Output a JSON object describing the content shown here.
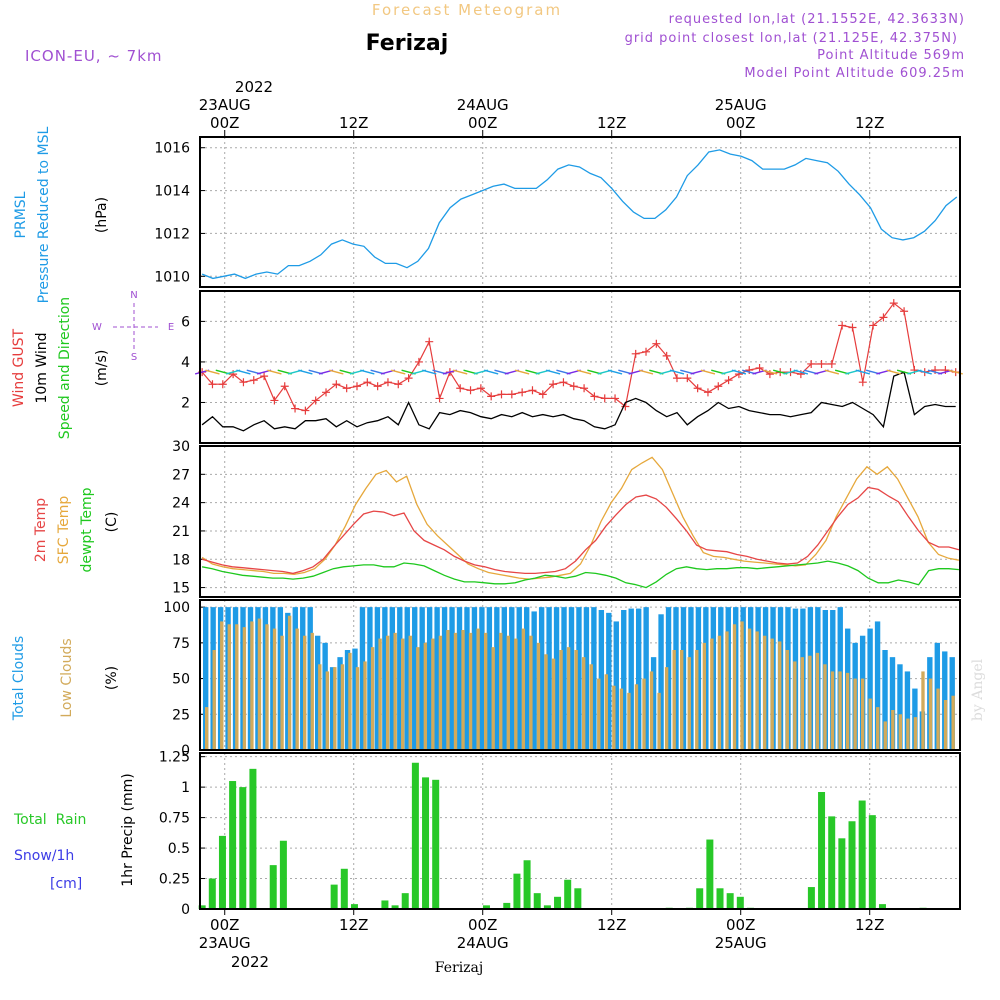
{
  "header": {
    "meteogram_title": "Forecast Meteogram",
    "location": "Ferizaj",
    "model": "ICON-EU, ~ 7km",
    "requested": "requested lon,lat (21.1552E, 42.3633N)",
    "grid_point": "grid point closest lon,lat (21.125E, 42.375N)",
    "point_altitude": "Point Altitude 569m",
    "model_altitude": "Model Point Altitude 609.25m"
  },
  "footer": {
    "location": "Ferizaj",
    "credit": "by Angel"
  },
  "time_axis": {
    "year": "2022",
    "ticks": [
      {
        "hour": 0,
        "label": "00Z",
        "date": "23AUG"
      },
      {
        "hour": 12,
        "label": "12Z",
        "date": ""
      },
      {
        "hour": 24,
        "label": "00Z",
        "date": "24AUG"
      },
      {
        "hour": 36,
        "label": "12Z",
        "date": ""
      },
      {
        "hour": 48,
        "label": "00Z",
        "date": "25AUG"
      },
      {
        "hour": 60,
        "label": "12Z",
        "date": ""
      }
    ]
  },
  "panels": {
    "pressure": {
      "label1": "PRMSL",
      "label2": "Pressure Reduced to MSL",
      "unit": "(hPa)"
    },
    "wind": {
      "gust": "Wind GUST",
      "wind10": "10m Wind",
      "dir": "Speed and Direction",
      "unit": "(m/s)",
      "compass_ns": "N / S",
      "w": "W",
      "e": "E",
      "n": "N",
      "s": "S"
    },
    "temp": {
      "t2m": "2m Temp",
      "sfc": "SFC Temp",
      "dew": "dewpt Temp",
      "unit": "(C)"
    },
    "clouds": {
      "total": "Total Clouds",
      "low": "Low Clouds",
      "unit": "(%)"
    },
    "precip": {
      "rain": "Total  Rain",
      "snow": "Snow/1h",
      "snow_unit": "[cm]",
      "axis": "1hr Precip (mm)"
    }
  },
  "colors": {
    "pressure": "#1e9be6",
    "gust": "#e63c3c",
    "wind": "#000000",
    "sfc": "#e6a83c",
    "t2m": "#e64646",
    "dew": "#1ec81e",
    "total_clouds": "#1e9be6",
    "low_clouds": "#d2aa5a",
    "precip": "#28c828",
    "purple": "#a050d2",
    "snow": "#3c3ce6"
  },
  "chart_data": [
    {
      "type": "line",
      "name": "PRMSL",
      "ylim": [
        1009.5,
        1016.5
      ],
      "yticks": [
        1010,
        1012,
        1014,
        1016
      ],
      "x": [
        0,
        1,
        2,
        3,
        4,
        5,
        6,
        7,
        8,
        9,
        10,
        11,
        12,
        13,
        14,
        15,
        16,
        17,
        18,
        19,
        20,
        21,
        22,
        23,
        24,
        25,
        26,
        27,
        28,
        29,
        30,
        31,
        32,
        33,
        34,
        35,
        36,
        37,
        38,
        39,
        40,
        41,
        42,
        43,
        44,
        45,
        46,
        47,
        48,
        49,
        50,
        51,
        52,
        53,
        54,
        55,
        56,
        57,
        58,
        59,
        60,
        61,
        62,
        63,
        64,
        65,
        66,
        67,
        68,
        69,
        70
      ],
      "values": [
        1010.1,
        1009.9,
        1010.0,
        1010.1,
        1009.9,
        1010.1,
        1010.2,
        1010.1,
        1010.5,
        1010.5,
        1010.7,
        1011.0,
        1011.5,
        1011.7,
        1011.5,
        1011.4,
        1010.9,
        1010.6,
        1010.6,
        1010.4,
        1010.7,
        1011.3,
        1012.5,
        1013.2,
        1013.6,
        1013.8,
        1014.0,
        1014.2,
        1014.3,
        1014.1,
        1014.1,
        1014.1,
        1014.5,
        1015.0,
        1015.2,
        1015.1,
        1014.8,
        1014.6,
        1014.1,
        1013.5,
        1013.0,
        1012.7,
        1012.7,
        1013.1,
        1013.7,
        1014.7,
        1015.2,
        1015.8,
        1015.9,
        1015.7,
        1015.6,
        1015.4,
        1015.0,
        1015.0,
        1015.0,
        1015.2,
        1015.5,
        1015.4,
        1015.3,
        1014.9,
        1014.3,
        1013.8,
        1013.2,
        1012.2,
        1011.8,
        1011.7,
        1011.8,
        1012.1,
        1012.6,
        1013.3,
        1013.7
      ]
    },
    {
      "type": "line",
      "name": "Wind",
      "ylim": [
        0,
        7.5
      ],
      "yticks": [
        2,
        4,
        6
      ],
      "series": [
        {
          "name": "Wind GUST",
          "values": [
            3.5,
            2.9,
            2.9,
            3.4,
            3.0,
            3.1,
            3.3,
            2.1,
            2.8,
            1.7,
            1.6,
            2.1,
            2.5,
            2.9,
            2.7,
            2.8,
            3.0,
            2.8,
            3.0,
            2.9,
            3.2,
            4.0,
            5.0,
            2.2,
            3.5,
            2.7,
            2.6,
            2.7,
            2.3,
            2.4,
            2.4,
            2.5,
            2.6,
            2.4,
            2.9,
            3.0,
            2.8,
            2.7,
            2.3,
            2.2,
            2.2,
            1.8,
            4.4,
            4.5,
            4.9,
            4.3,
            3.2,
            3.2,
            2.7,
            2.5,
            2.8,
            3.1,
            3.4,
            3.6,
            3.7,
            3.4,
            3.5,
            3.5,
            3.4,
            3.9,
            3.9,
            3.9,
            5.8,
            5.7,
            3.0,
            5.8,
            6.2,
            6.9,
            6.5,
            3.6,
            3.5,
            3.6,
            3.6,
            3.5
          ]
        },
        {
          "name": "10m Wind",
          "values": [
            0.9,
            1.3,
            0.8,
            0.8,
            0.6,
            0.9,
            1.1,
            0.7,
            0.8,
            0.7,
            1.1,
            1.1,
            1.2,
            0.8,
            1.1,
            0.8,
            1.0,
            1.1,
            1.3,
            0.9,
            2.0,
            0.9,
            0.7,
            1.5,
            1.4,
            1.6,
            1.5,
            1.3,
            1.2,
            1.4,
            1.3,
            1.5,
            1.3,
            1.4,
            1.3,
            1.4,
            1.2,
            1.1,
            0.8,
            0.7,
            0.9,
            2.0,
            2.2,
            2.0,
            1.6,
            1.3,
            1.5,
            0.9,
            1.3,
            1.6,
            2.0,
            1.7,
            1.8,
            1.6,
            1.5,
            1.4,
            1.4,
            1.3,
            1.4,
            1.5,
            2.0,
            1.9,
            1.8,
            2.0,
            1.7,
            1.4,
            0.8,
            3.3,
            3.5,
            1.4,
            1.8,
            1.9,
            1.8,
            1.8
          ]
        }
      ]
    },
    {
      "type": "line",
      "name": "Temperature",
      "ylim": [
        14,
        30
      ],
      "yticks": [
        15,
        18,
        21,
        24,
        27,
        30
      ],
      "series": [
        {
          "name": "SFC Temp",
          "values": [
            18.2,
            17.5,
            17.2,
            17.0,
            16.9,
            16.8,
            16.7,
            16.5,
            16.5,
            16.4,
            16.6,
            17.0,
            18.0,
            19.5,
            21.5,
            23.8,
            25.5,
            27.0,
            27.4,
            26.2,
            26.8,
            23.8,
            21.7,
            20.5,
            19.5,
            18.5,
            17.5,
            17.0,
            16.6,
            16.4,
            16.2,
            16.0,
            15.9,
            16.0,
            16.1,
            16.3,
            16.5,
            17.5,
            19.5,
            22.0,
            24.0,
            25.5,
            27.5,
            28.2,
            28.8,
            27.5,
            25.0,
            22.5,
            20.5,
            18.7,
            18.3,
            18.2,
            18.0,
            17.8,
            17.7,
            17.6,
            17.5,
            17.4,
            17.3,
            17.4,
            18.5,
            20.0,
            22.5,
            24.5,
            26.5,
            27.8,
            27.0,
            27.8,
            26.5,
            24.5,
            22.5,
            19.8,
            18.5,
            18.1,
            17.9
          ]
        },
        {
          "name": "2m Temp",
          "values": [
            18.0,
            17.7,
            17.4,
            17.2,
            17.1,
            17.0,
            16.9,
            16.8,
            16.7,
            16.5,
            16.8,
            17.2,
            18.0,
            19.3,
            20.5,
            21.7,
            22.8,
            23.1,
            23.0,
            22.6,
            22.9,
            21.0,
            20.0,
            19.5,
            19.0,
            18.3,
            17.8,
            17.4,
            17.2,
            16.9,
            16.7,
            16.6,
            16.5,
            16.5,
            16.6,
            16.7,
            17.0,
            17.8,
            19.0,
            20.0,
            21.5,
            22.7,
            23.8,
            24.6,
            24.8,
            24.4,
            23.5,
            22.3,
            21.0,
            19.5,
            19.0,
            18.9,
            18.8,
            18.5,
            18.3,
            18.0,
            17.8,
            17.6,
            17.5,
            17.6,
            18.3,
            19.5,
            21.0,
            22.5,
            23.8,
            24.5,
            25.6,
            25.4,
            24.7,
            24.1,
            22.5,
            21.0,
            19.8,
            19.3,
            19.3,
            19.0
          ]
        },
        {
          "name": "dewpt Temp",
          "values": [
            17.2,
            17.0,
            16.7,
            16.5,
            16.3,
            16.2,
            16.1,
            16.0,
            16.0,
            15.9,
            16.0,
            16.2,
            16.6,
            17.0,
            17.2,
            17.3,
            17.4,
            17.4,
            17.2,
            17.2,
            17.6,
            17.5,
            17.3,
            16.8,
            16.3,
            15.9,
            15.6,
            15.6,
            15.5,
            15.4,
            15.4,
            15.5,
            15.8,
            16.0,
            16.3,
            16.2,
            16.0,
            16.2,
            16.6,
            16.5,
            16.3,
            16.0,
            15.5,
            15.3,
            15.0,
            15.6,
            16.4,
            17.0,
            17.2,
            17.0,
            16.9,
            17.0,
            17.0,
            17.1,
            17.1,
            17.0,
            17.1,
            17.2,
            17.3,
            17.4,
            17.5,
            17.6,
            17.8,
            17.6,
            17.3,
            16.8,
            16.0,
            15.5,
            15.5,
            15.8,
            15.6,
            15.3,
            16.8,
            17.0,
            17.0,
            16.9
          ]
        }
      ]
    },
    {
      "type": "bar",
      "name": "Clouds",
      "ylim": [
        0,
        105
      ],
      "yticks": [
        0,
        25,
        50,
        75,
        100
      ],
      "series": [
        {
          "name": "Total Clouds",
          "values": [
            100,
            100,
            100,
            100,
            100,
            100,
            100,
            100,
            100,
            100,
            100,
            96,
            100,
            100,
            100,
            80,
            75,
            58,
            65,
            70,
            71,
            100,
            100,
            100,
            100,
            100,
            100,
            100,
            100,
            100,
            100,
            100,
            100,
            100,
            100,
            100,
            100,
            100,
            100,
            100,
            100,
            100,
            100,
            100,
            97,
            100,
            100,
            100,
            100,
            100,
            100,
            100,
            100,
            98,
            96,
            90,
            98,
            99,
            99,
            100,
            65,
            95,
            100,
            100,
            100,
            100,
            100,
            100,
            100,
            100,
            100,
            100,
            100,
            100,
            100,
            100,
            100,
            100,
            100,
            99,
            99,
            100,
            100,
            98,
            98,
            100,
            85,
            75,
            80,
            85,
            90,
            70,
            65,
            60,
            55,
            43,
            27,
            65,
            75,
            69,
            65
          ]
        },
        {
          "name": "Low Clouds",
          "values": [
            30,
            70,
            90,
            88,
            88,
            86,
            90,
            92,
            88,
            85,
            80,
            94,
            85,
            80,
            82,
            60,
            55,
            58,
            60,
            68,
            58,
            62,
            72,
            78,
            80,
            82,
            78,
            80,
            72,
            75,
            78,
            80,
            84,
            82,
            84,
            82,
            85,
            82,
            72,
            82,
            80,
            78,
            85,
            80,
            75,
            67,
            64,
            70,
            72,
            70,
            65,
            60,
            50,
            53,
            45,
            43,
            40,
            46,
            50,
            55,
            40,
            58,
            70,
            70,
            65,
            70,
            75,
            78,
            80,
            83,
            88,
            90,
            85,
            83,
            80,
            78,
            76,
            70,
            62,
            65,
            66,
            68,
            60,
            55,
            55,
            54,
            50,
            50,
            36,
            30,
            20,
            28,
            25,
            22,
            23,
            55,
            50,
            43,
            35,
            38
          ]
        }
      ]
    },
    {
      "type": "bar",
      "name": "1hr Precip",
      "ylim": [
        0,
        1.28
      ],
      "yticks": [
        0,
        0.25,
        0.5,
        0.75,
        1,
        1.25
      ],
      "values": [
        0.03,
        0.25,
        0.6,
        1.05,
        1.0,
        1.15,
        0,
        0.36,
        0.56,
        0,
        0,
        0,
        0,
        0.2,
        0.33,
        0.04,
        0,
        0,
        0.07,
        0.03,
        0.13,
        1.2,
        1.08,
        1.06,
        0,
        0,
        0,
        0,
        0.03,
        0,
        0.05,
        0.29,
        0.4,
        0.13,
        0.03,
        0.1,
        0.24,
        0.17,
        0,
        0,
        0,
        0,
        0,
        0,
        0,
        0,
        0.01,
        0,
        0.01,
        0.17,
        0.57,
        0.17,
        0.13,
        0.1,
        0.01,
        0,
        0,
        0,
        0,
        0,
        0.18,
        0.96,
        0.76,
        0.58,
        0.72,
        0.89,
        0.77,
        0.04,
        0,
        0,
        0,
        0.01,
        0,
        0,
        0
      ]
    }
  ]
}
